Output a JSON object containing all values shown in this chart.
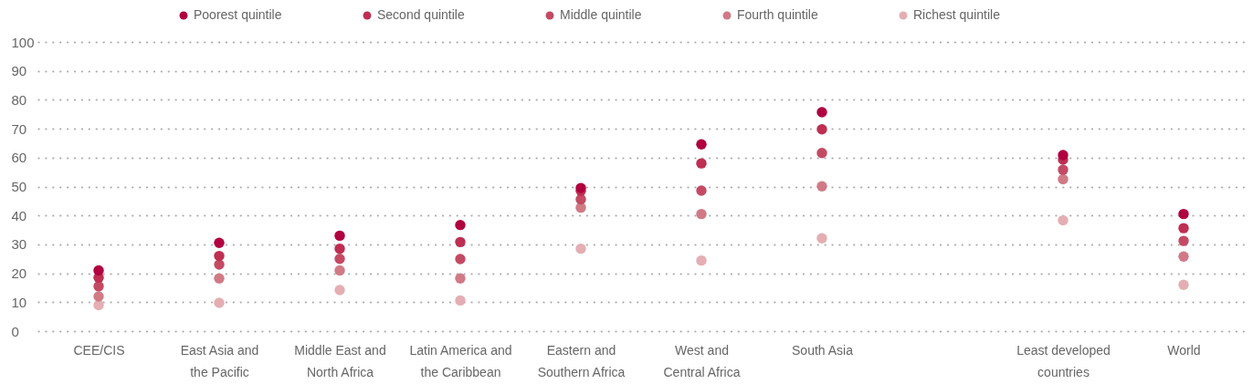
{
  "chart_data": {
    "type": "scatter",
    "categories": [
      "CEE/CIS",
      "East Asia and the Pacific",
      "Middle East and North Africa",
      "Latin America and the Caribbean",
      "Eastern and Southern Africa",
      "West and Central Africa",
      "South Asia",
      null,
      "Least developed countries",
      "World"
    ],
    "series": [
      {
        "name": "Poorest quintile",
        "color": "#b0003f",
        "values": [
          21,
          30.5,
          33,
          36.7,
          49.5,
          64.6,
          75.7,
          null,
          60.9,
          40.5
        ]
      },
      {
        "name": "Second quintile",
        "color": "#be2f52",
        "values": [
          18.5,
          26,
          28.5,
          30.8,
          48.5,
          58,
          69.8,
          null,
          59.3,
          35.6
        ]
      },
      {
        "name": "Middle quintile",
        "color": "#c44a63",
        "values": [
          15.5,
          23,
          25,
          24.9,
          45.6,
          48.6,
          61.6,
          null,
          55.8,
          31.2
        ]
      },
      {
        "name": "Fourth quintile",
        "color": "#d07a86",
        "values": [
          12,
          18.2,
          21,
          18.2,
          42.7,
          40.5,
          50.1,
          null,
          52.5,
          25.8
        ]
      },
      {
        "name": "Richest quintile",
        "color": "#e4aeb3",
        "values": [
          9,
          9.8,
          14.2,
          10.6,
          28.5,
          24.4,
          32.1,
          null,
          38.3,
          16
        ]
      }
    ],
    "ylim": [
      0,
      100
    ],
    "yticks": [
      0,
      10,
      20,
      30,
      40,
      50,
      60,
      70,
      80,
      90,
      100
    ],
    "grid": "y",
    "legend": "top",
    "marker": "circle"
  }
}
